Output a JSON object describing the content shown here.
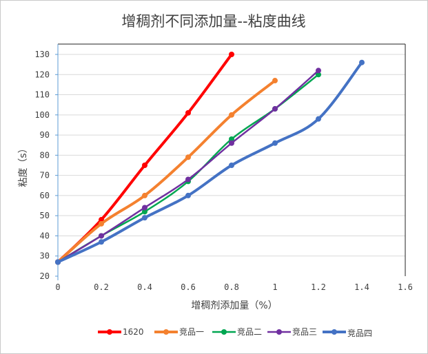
{
  "chart_data": {
    "type": "line",
    "title": "增稠剂不同添加量--粘度曲线",
    "xlabel": "增稠剂添加量（%）",
    "ylabel": "粘度（s）",
    "xlim": [
      0,
      1.6
    ],
    "ylim": [
      20,
      130
    ],
    "xticks": [
      "0",
      "0.2",
      "0.4",
      "0.6",
      "0.8",
      "1",
      "1.2",
      "1.4",
      "1.6"
    ],
    "yticks": [
      "20",
      "30",
      "40",
      "50",
      "60",
      "70",
      "80",
      "90",
      "100",
      "110",
      "120",
      "130"
    ],
    "grid": true,
    "legend": "bottom",
    "series": [
      {
        "name": "1620",
        "color": "#ff0000",
        "x": [
          0,
          0.2,
          0.4,
          0.6,
          0.8
        ],
        "y": [
          27,
          48,
          75,
          101,
          130
        ]
      },
      {
        "name": "竞品一",
        "color": "#f4812f",
        "x": [
          0,
          0.2,
          0.4,
          0.6,
          0.8,
          1.0
        ],
        "y": [
          27,
          46,
          60,
          79,
          100,
          117
        ]
      },
      {
        "name": "竞品二",
        "color": "#00a651",
        "x": [
          0,
          0.2,
          0.4,
          0.6,
          0.8,
          1.0,
          1.2
        ],
        "y": [
          27,
          40,
          52,
          67,
          88,
          103,
          120
        ]
      },
      {
        "name": "竞品三",
        "color": "#7030a0",
        "x": [
          0,
          0.2,
          0.4,
          0.6,
          0.8,
          1.0,
          1.2
        ],
        "y": [
          27,
          40,
          54,
          68,
          86,
          103,
          122
        ]
      },
      {
        "name": "竞品四",
        "color": "#4472c4",
        "x": [
          0,
          0.2,
          0.4,
          0.6,
          0.8,
          1.0,
          1.2,
          1.4
        ],
        "y": [
          27,
          37,
          49,
          60,
          75,
          86,
          98,
          126
        ]
      }
    ]
  }
}
